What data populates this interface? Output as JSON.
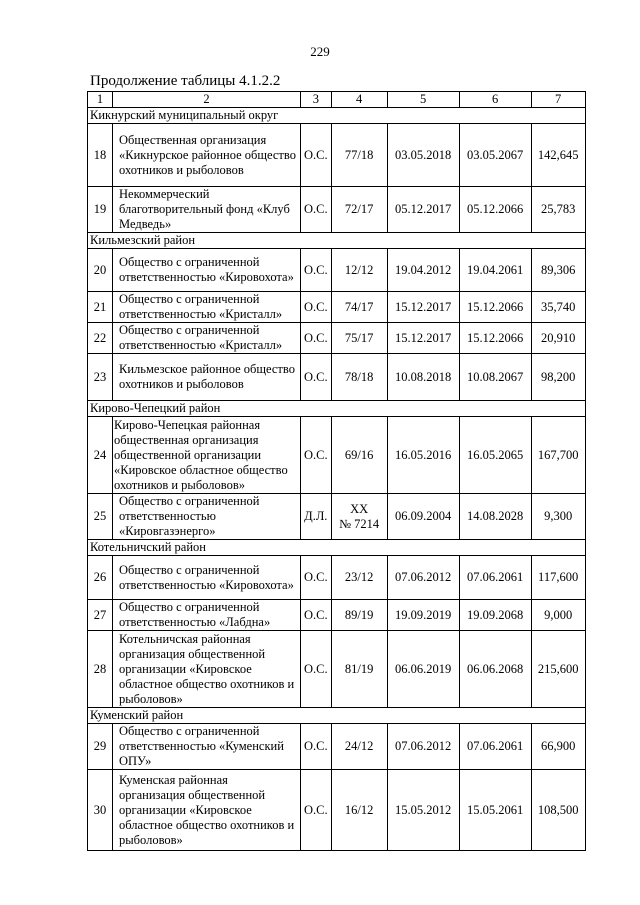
{
  "page_number": "229",
  "caption": "Продолжение таблицы 4.1.2.2",
  "header": [
    "1",
    "2",
    "3",
    "4",
    "5",
    "6",
    "7"
  ],
  "sections": [
    {
      "title": "Кикнурский муниципальный округ",
      "rows": [
        {
          "num": "18",
          "name": "Общественная организация «Кикнурское районное общество охотников и рыболовов",
          "type": "О.С.",
          "doc": "77/18",
          "start": "03.05.2018",
          "end": "03.05.2067",
          "area": "142,645",
          "h": 63
        },
        {
          "num": "19",
          "name": "Некоммерческий благотворительный фонд «Клуб Медведь»",
          "type": "О.С.",
          "doc": "72/17",
          "start": "05.12.2017",
          "end": "05.12.2066",
          "area": "25,783",
          "h": 45
        }
      ]
    },
    {
      "title": "Кильмезский район",
      "rows": [
        {
          "num": "20",
          "name": "Общество с ограниченной ответственностью «Кировохота»",
          "type": "О.С.",
          "doc": "12/12",
          "start": "19.04.2012",
          "end": "19.04.2061",
          "area": "89,306",
          "h": 43
        },
        {
          "num": "21",
          "name": "Общество с ограниченной ответственностью «Кристалл»",
          "type": "О.С.",
          "doc": "74/17",
          "start": "15.12.2017",
          "end": "15.12.2066",
          "area": "35,740",
          "h": 27
        },
        {
          "num": "22",
          "name": "Общество с ограниченной ответственностью «Кристалл»",
          "type": "О.С.",
          "doc": "75/17",
          "start": "15.12.2017",
          "end": "15.12.2066",
          "area": "20,910",
          "h": 29
        },
        {
          "num": "23",
          "name": "Кильмезское районное общество охотников и рыболовов",
          "type": "О.С.",
          "doc": "78/18",
          "start": "10.08.2018",
          "end": "10.08.2067",
          "area": "98,200",
          "h": 47
        }
      ]
    },
    {
      "title": "Кирово-Чепецкий район",
      "rows": [
        {
          "num": "24",
          "name": "Кирово-Чепецкая районная общественная организация общественной организации «Кировское областное общество охотников и рыболовов»",
          "type": "О.С.",
          "doc": "69/16",
          "start": "16.05.2016",
          "end": "16.05.2065",
          "area": "167,700",
          "h": 77,
          "tight": true
        },
        {
          "num": "25",
          "name": "Общество с ограниченной ответственностью «Кировгазэнерго»",
          "type": "Д.Л.",
          "doc": "ХХ № 7214",
          "start": "06.09.2004",
          "end": "14.08.2028",
          "area": "9,300",
          "h": 45
        }
      ]
    },
    {
      "title": "Котельничский район",
      "rows": [
        {
          "num": "26",
          "name": "Общество с ограниченной ответственностью «Кировохота»",
          "type": "О.С.",
          "doc": "23/12",
          "start": "07.06.2012",
          "end": "07.06.2061",
          "area": "117,600",
          "h": 44
        },
        {
          "num": "27",
          "name": "Общество с ограниченной ответственностью «Лабдна»",
          "type": "О.С.",
          "doc": "89/19",
          "start": "19.09.2019",
          "end": "19.09.2068",
          "area": "9,000",
          "h": 30
        },
        {
          "num": "28",
          "name": "Котельничская районная организация общественной организации «Кировское областное общество охотников и рыболовов»",
          "type": "О.С.",
          "doc": "81/19",
          "start": "06.06.2019",
          "end": "06.06.2068",
          "area": "215,600",
          "h": 77
        }
      ]
    },
    {
      "title": "Куменский район",
      "rows": [
        {
          "num": "29",
          "name": "Общество с ограниченной ответственностью «Куменский ОПУ»",
          "type": "О.С.",
          "doc": "24/12",
          "start": "07.06.2012",
          "end": "07.06.2061",
          "area": "66,900",
          "h": 38
        },
        {
          "num": "30",
          "name": "Куменская районная организация общественной организации «Кировское областное общество охотников и рыболовов»",
          "type": "О.С.",
          "doc": "16/12",
          "start": "15.05.2012",
          "end": "15.05.2061",
          "area": "108,500",
          "h": 81
        }
      ]
    }
  ]
}
